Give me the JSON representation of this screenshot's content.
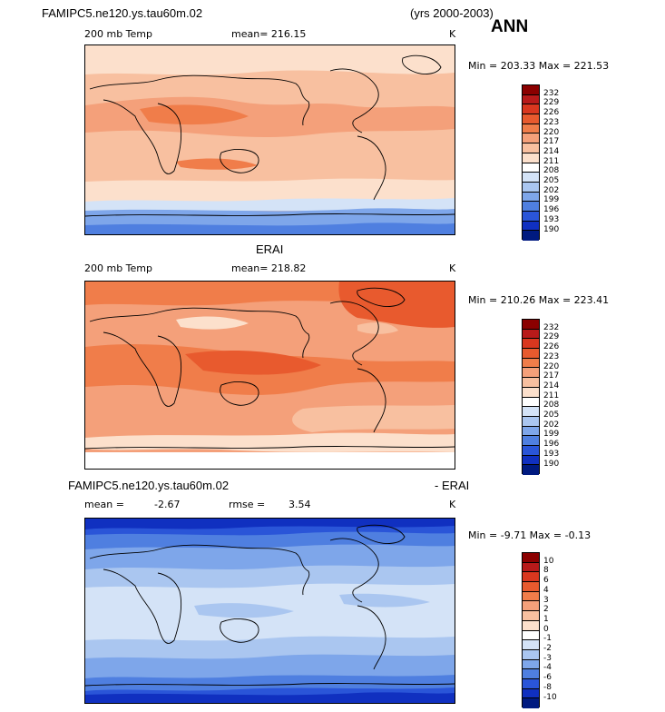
{
  "header": {
    "case_name": "FAMIPC5.ne120.ys.tau60m.02",
    "years": "(yrs 2000-2003)",
    "season": "ANN"
  },
  "panel1": {
    "field": "200 mb Temp",
    "mean": "mean= 216.15",
    "units": "K",
    "minmax": "Min = 203.33 Max = 221.53"
  },
  "panel2": {
    "title": "ERAI",
    "field": "200 mb Temp",
    "mean": "mean= 218.82",
    "units": "K",
    "minmax": "Min = 210.26 Max = 223.41"
  },
  "panel3": {
    "title_left": "FAMIPC5.ne120.ys.tau60m.02",
    "title_right": "- ERAI",
    "mean_label": "mean =",
    "mean_value": "-2.67",
    "rmse_label": "rmse =",
    "rmse_value": "3.54",
    "units": "K",
    "minmax": "Min = -9.71 Max = -0.13"
  },
  "colorbar_temp": {
    "labels": [
      "232",
      "229",
      "226",
      "223",
      "220",
      "217",
      "214",
      "211",
      "208",
      "205",
      "202",
      "199",
      "196",
      "193",
      "190"
    ],
    "colors": [
      "#8b0000",
      "#b81a1a",
      "#d9371f",
      "#e85a2e",
      "#f07d4a",
      "#f4a07a",
      "#f8c0a0",
      "#fce0cc",
      "#ffffff",
      "#d4e3f7",
      "#aac6f0",
      "#7ea6ea",
      "#4f7fe0",
      "#2a55d8",
      "#1030c0",
      "#001a80"
    ]
  },
  "colorbar_diff": {
    "labels": [
      "10",
      "8",
      "6",
      "4",
      "3",
      "2",
      "1",
      "0",
      "-1",
      "-2",
      "-3",
      "-4",
      "-6",
      "-8",
      "-10"
    ],
    "colors": [
      "#8b0000",
      "#b81a1a",
      "#d9371f",
      "#e85a2e",
      "#f07d4a",
      "#f4a07a",
      "#f8c0a0",
      "#fce0cc",
      "#ffffff",
      "#d4e3f7",
      "#aac6f0",
      "#7ea6ea",
      "#4f7fe0",
      "#2a55d8",
      "#1030c0",
      "#001a80"
    ]
  }
}
